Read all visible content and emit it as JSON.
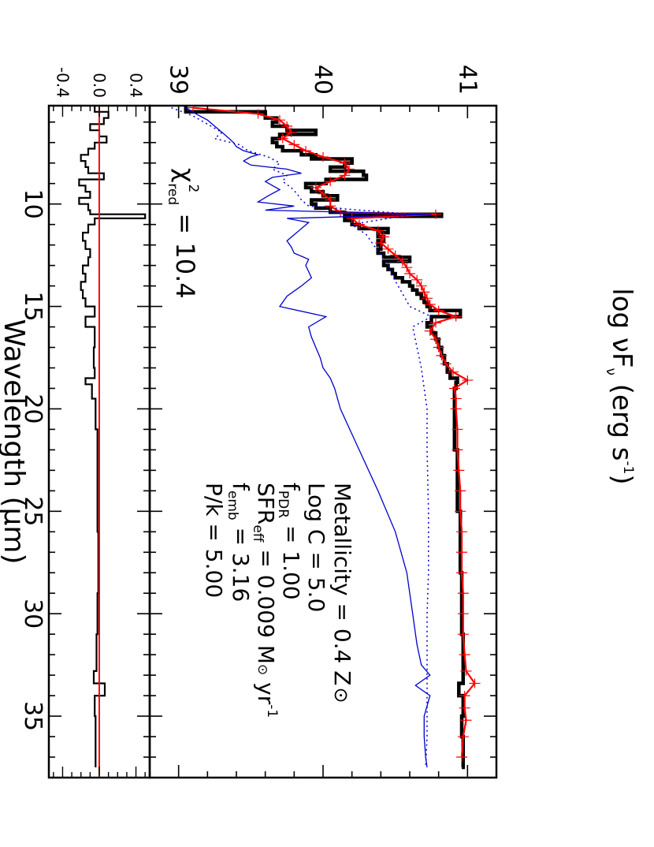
{
  "chart_data": {
    "type": "line",
    "panels": [
      "main",
      "residual"
    ],
    "xlabel": "Wavelength (μm)",
    "ylabel": "log νF",
    "ylabel_sub": "ν",
    "ylabel_unit": " (erg s",
    "ylabel_unit_sup": "-1",
    "ylabel_close": ")",
    "x_ticks": [
      "10",
      "15",
      "20",
      "25",
      "30",
      "35"
    ],
    "x_tick_values": [
      10,
      15,
      20,
      25,
      30,
      35
    ],
    "xlim": [
      5.2,
      38.0
    ],
    "main_ylim": [
      38.8,
      41.2
    ],
    "main_y_ticks": [
      "39",
      "40",
      "41"
    ],
    "main_y_tick_values": [
      39,
      40,
      41
    ],
    "resid_ylim": [
      -0.55,
      0.55
    ],
    "resid_y_ticks": [
      "-0.4",
      "0.0",
      "0.4"
    ],
    "resid_y_tick_values": [
      -0.4,
      0.0,
      0.4
    ],
    "chi2": {
      "symbol": "χ",
      "sup": "2",
      "sub": "red",
      "value": " = 10.4"
    },
    "annotations": {
      "metallicity": {
        "text": "Metallicity = 0.4 Z",
        "symbol": "⊙"
      },
      "logc": {
        "text": "Log C = 5.0"
      },
      "fpdr": {
        "main": "f",
        "sub": "PDR",
        "text": " = 1.00"
      },
      "sfr": {
        "main": "SFR",
        "sub": "eff",
        "text": " = 0.009 M",
        "symbol": "⊙",
        "tail": " yr",
        "sup": "-1"
      },
      "femb": {
        "main": "f",
        "sub": "emb",
        "text": " = 3.16"
      },
      "pk": {
        "text": "P/k = 5.00"
      }
    },
    "series": [
      {
        "role": "observed",
        "color": "#000000",
        "style": "steps-thick",
        "x": [
          5.2,
          5.5,
          5.8,
          6.0,
          6.2,
          6.4,
          6.6,
          6.8,
          7.0,
          7.2,
          7.4,
          7.6,
          7.7,
          7.8,
          8.0,
          8.2,
          8.4,
          8.6,
          8.8,
          9.0,
          9.2,
          9.4,
          9.6,
          9.8,
          10.0,
          10.2,
          10.4,
          10.5,
          10.6,
          10.8,
          11.0,
          11.2,
          11.4,
          11.6,
          11.8,
          12.0,
          12.2,
          12.4,
          12.6,
          12.8,
          13.0,
          13.2,
          13.4,
          13.6,
          13.8,
          14.0,
          14.2,
          14.4,
          14.6,
          14.8,
          15.0,
          15.2,
          15.5,
          15.8,
          16.0,
          16.3,
          16.6,
          17.0,
          17.4,
          17.8,
          18.2,
          18.5,
          18.7,
          19.0,
          20.0,
          22.0,
          25.0,
          28.0,
          31.0,
          33.0,
          33.4,
          34.0,
          35.0,
          36.0,
          37.5
        ],
        "y": [
          39.05,
          39.6,
          39.68,
          39.65,
          39.75,
          39.95,
          39.7,
          39.65,
          39.68,
          39.72,
          39.85,
          39.95,
          39.92,
          40.2,
          40.15,
          40.05,
          40.28,
          40.3,
          40.02,
          39.88,
          39.92,
          40.0,
          40.1,
          39.92,
          39.95,
          40.05,
          40.15,
          40.82,
          40.15,
          40.2,
          40.25,
          40.45,
          40.38,
          40.42,
          40.38,
          40.4,
          40.38,
          40.42,
          40.6,
          40.42,
          40.45,
          40.48,
          40.5,
          40.55,
          40.6,
          40.62,
          40.65,
          40.68,
          40.7,
          40.72,
          40.74,
          40.95,
          40.75,
          40.72,
          40.75,
          40.78,
          40.8,
          40.82,
          40.84,
          40.86,
          40.88,
          40.93,
          40.92,
          40.91,
          40.91,
          40.93,
          40.95,
          40.96,
          40.97,
          40.97,
          40.94,
          40.97,
          40.96,
          40.97,
          40.96
        ]
      },
      {
        "role": "model",
        "color": "#ff0000",
        "style": "line-errorbars",
        "x": [
          5.3,
          5.6,
          5.9,
          6.2,
          6.5,
          6.8,
          7.1,
          7.4,
          7.7,
          8.0,
          8.3,
          8.6,
          8.9,
          9.2,
          9.5,
          9.8,
          10.1,
          10.4,
          10.5,
          10.7,
          11.0,
          11.3,
          11.6,
          11.9,
          12.2,
          12.5,
          12.8,
          13.1,
          13.4,
          13.7,
          14.0,
          14.3,
          14.6,
          14.9,
          15.2,
          15.5,
          15.8,
          16.2,
          16.6,
          17.0,
          17.4,
          17.8,
          18.2,
          18.6,
          19.0,
          19.5,
          20.0,
          21.0,
          22.0,
          23.0,
          24.0,
          25.0,
          26.0,
          27.0,
          28.0,
          29.0,
          30.0,
          31.0,
          32.0,
          32.8,
          33.4,
          34.0,
          34.6,
          35.2,
          36.0,
          37.0
        ],
        "y": [
          39.1,
          39.55,
          39.7,
          39.75,
          39.78,
          39.72,
          39.8,
          39.88,
          40.0,
          40.15,
          40.18,
          40.15,
          40.05,
          39.95,
          40.0,
          40.05,
          40.05,
          40.12,
          40.78,
          40.2,
          40.25,
          40.38,
          40.42,
          40.4,
          40.45,
          40.5,
          40.55,
          40.58,
          40.6,
          40.65,
          40.68,
          40.7,
          40.72,
          40.74,
          40.8,
          40.92,
          40.78,
          40.74,
          40.78,
          40.8,
          40.82,
          40.85,
          40.9,
          41.0,
          40.91,
          40.92,
          40.92,
          40.93,
          40.93,
          40.94,
          40.95,
          40.95,
          40.96,
          40.96,
          40.96,
          40.97,
          40.97,
          40.97,
          40.98,
          40.99,
          41.05,
          40.98,
          40.98,
          40.99,
          40.97,
          40.96
        ]
      },
      {
        "role": "component-solid",
        "color": "#0000cc",
        "style": "line",
        "x": [
          5.3,
          5.6,
          5.9,
          6.2,
          6.5,
          6.8,
          7.0,
          7.2,
          7.4,
          7.6,
          7.7,
          7.9,
          8.1,
          8.3,
          8.5,
          8.7,
          8.9,
          9.1,
          9.3,
          9.6,
          9.9,
          10.1,
          10.3,
          10.5,
          10.7,
          10.9,
          11.2,
          11.5,
          11.8,
          12.1,
          12.4,
          12.7,
          13.0,
          13.3,
          13.6,
          14.0,
          14.5,
          15.0,
          15.5,
          16.0,
          16.5,
          17.0,
          17.5,
          18.0,
          18.5,
          19.0,
          20.0,
          22.0,
          24.0,
          26.0,
          28.0,
          30.0,
          31.5,
          32.5,
          33.0,
          33.5,
          34.0,
          34.5,
          35.0,
          36.0,
          37.0,
          37.5
        ],
        "y": [
          39.05,
          39.12,
          39.2,
          39.25,
          39.3,
          39.35,
          39.38,
          39.4,
          39.45,
          39.55,
          39.5,
          39.45,
          39.5,
          39.75,
          39.85,
          39.65,
          39.6,
          39.65,
          39.7,
          39.62,
          39.55,
          39.8,
          39.6,
          40.75,
          39.75,
          39.9,
          39.85,
          39.8,
          39.75,
          39.78,
          39.8,
          39.9,
          39.88,
          39.9,
          39.92,
          39.85,
          39.75,
          39.7,
          40.02,
          39.9,
          39.92,
          39.95,
          39.98,
          40.0,
          40.05,
          40.08,
          40.12,
          40.25,
          40.38,
          40.5,
          40.58,
          40.62,
          40.65,
          40.68,
          40.74,
          40.64,
          40.74,
          40.72,
          40.7,
          40.7,
          40.71,
          40.72
        ]
      },
      {
        "role": "component-dotted",
        "color": "#0000cc",
        "style": "dotted",
        "x": [
          5.3,
          5.7,
          6.1,
          6.5,
          6.8,
          7.1,
          7.4,
          7.7,
          8.0,
          8.3,
          8.6,
          8.9,
          9.2,
          9.5,
          9.8,
          10.1,
          10.5,
          11.0,
          11.5,
          12.0,
          12.5,
          13.0,
          13.5,
          14.0,
          14.5,
          15.0,
          15.5,
          16.0,
          17.0,
          18.0,
          19.0,
          20.0,
          22.0,
          25.0,
          28.0,
          30.0,
          32.0,
          33.0,
          34.0,
          36.0,
          37.5
        ],
        "y": [
          38.95,
          39.1,
          39.2,
          39.3,
          39.25,
          39.42,
          39.48,
          39.62,
          39.7,
          39.65,
          39.75,
          39.72,
          39.78,
          39.82,
          39.85,
          39.9,
          40.62,
          40.2,
          40.3,
          40.35,
          40.4,
          40.45,
          40.48,
          40.52,
          40.56,
          40.6,
          40.75,
          40.62,
          40.65,
          40.68,
          40.7,
          40.72,
          40.72,
          40.73,
          40.73,
          40.72,
          40.72,
          40.72,
          40.72,
          40.72,
          40.71
        ]
      },
      {
        "role": "residual",
        "color": "#000000",
        "style": "steps",
        "x": [
          5.2,
          5.5,
          5.8,
          6.1,
          6.4,
          6.7,
          7.0,
          7.3,
          7.6,
          7.9,
          8.2,
          8.5,
          8.8,
          9.1,
          9.4,
          9.7,
          10.0,
          10.3,
          10.5,
          10.7,
          11.0,
          11.4,
          11.8,
          12.2,
          12.6,
          13.0,
          13.4,
          13.8,
          14.2,
          14.6,
          15.0,
          15.5,
          16.0,
          17.0,
          18.0,
          18.5,
          18.8,
          19.5,
          21.0,
          23.0,
          26.0,
          29.0,
          31.0,
          32.8,
          33.4,
          34.0,
          35.0,
          37.5
        ],
        "y": [
          -0.05,
          0.1,
          0.05,
          -0.1,
          0.0,
          0.08,
          -0.05,
          -0.12,
          -0.2,
          -0.15,
          -0.12,
          0.05,
          -0.22,
          -0.15,
          -0.1,
          -0.22,
          -0.12,
          -0.1,
          0.5,
          -0.05,
          -0.12,
          -0.18,
          -0.15,
          -0.1,
          -0.12,
          -0.18,
          -0.15,
          -0.2,
          -0.18,
          -0.15,
          -0.05,
          -0.15,
          -0.05,
          -0.06,
          -0.05,
          -0.15,
          -0.08,
          -0.04,
          -0.02,
          -0.02,
          -0.01,
          -0.02,
          -0.03,
          -0.06,
          0.06,
          -0.05,
          -0.04,
          -0.04
        ]
      },
      {
        "role": "residual-zero",
        "color": "#ff0000",
        "style": "line",
        "x": [
          5.2,
          37.9
        ],
        "y": [
          0.0,
          0.0
        ]
      }
    ]
  }
}
